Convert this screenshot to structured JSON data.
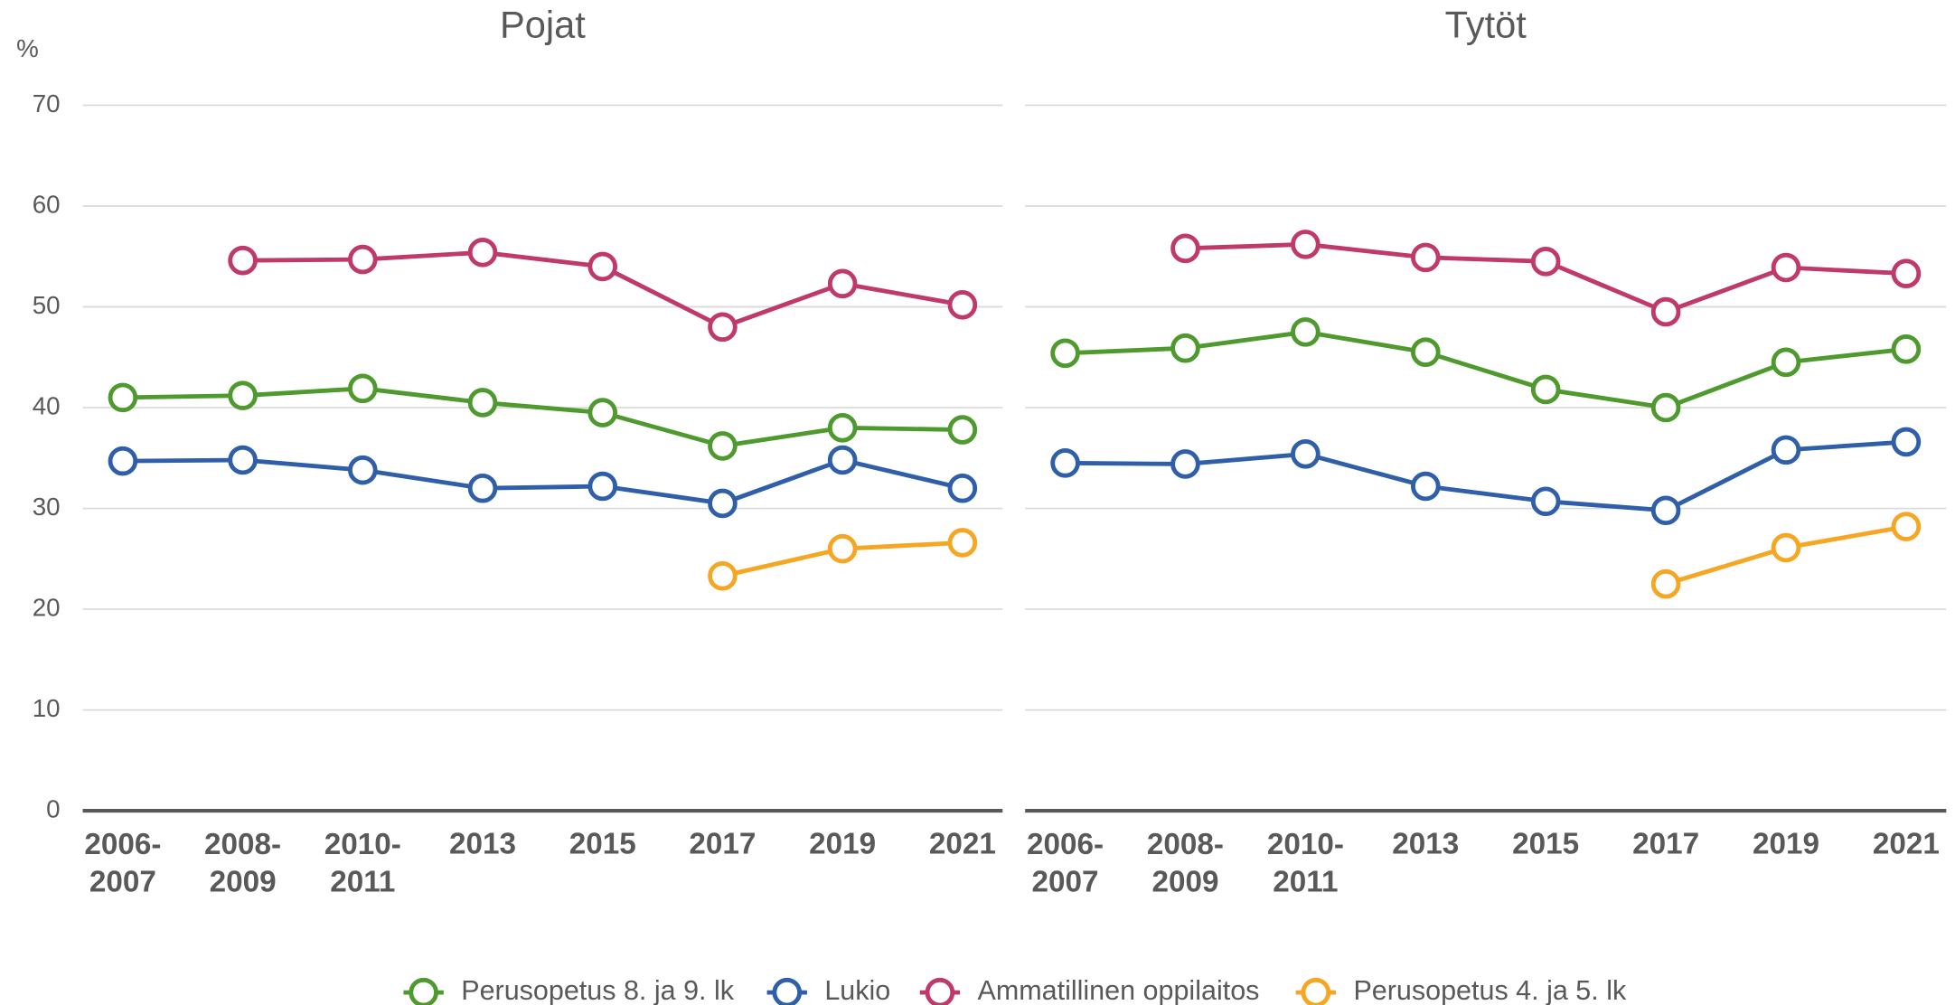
{
  "chart_data": [
    {
      "type": "line",
      "title": "Pojat",
      "y_label": "%",
      "categories": [
        "2006-\n2007",
        "2008-\n2009",
        "2010-\n2011",
        "2013",
        "2015",
        "2017",
        "2019",
        "2021"
      ],
      "ylim": [
        0,
        70
      ],
      "yticks": [
        0,
        10,
        20,
        30,
        40,
        50,
        60,
        70
      ],
      "grid": true,
      "series": [
        {
          "name": "Perusopetus 8. ja 9. lk",
          "color": "#4e9a2e",
          "values": [
            41.0,
            41.2,
            41.9,
            40.5,
            39.5,
            36.2,
            38.0,
            37.8
          ]
        },
        {
          "name": "Lukio",
          "color": "#2f5fa8",
          "values": [
            34.7,
            34.8,
            33.8,
            32.0,
            32.2,
            30.5,
            34.8,
            32.0
          ]
        },
        {
          "name": "Ammatillinen oppilaitos",
          "color": "#c0396b",
          "values": [
            null,
            54.6,
            54.7,
            55.4,
            54.0,
            48.0,
            52.3,
            50.2
          ]
        },
        {
          "name": "Perusopetus 4. ja 5. lk",
          "color": "#f5a623",
          "values": [
            null,
            null,
            null,
            null,
            null,
            23.3,
            26.0,
            26.6
          ]
        }
      ]
    },
    {
      "type": "line",
      "title": "Tytöt",
      "categories": [
        "2006-\n2007",
        "2008-\n2009",
        "2010-\n2011",
        "2013",
        "2015",
        "2017",
        "2019",
        "2021"
      ],
      "ylim": [
        0,
        70
      ],
      "yticks": [
        0,
        10,
        20,
        30,
        40,
        50,
        60,
        70
      ],
      "grid": true,
      "series": [
        {
          "color": "#4e9a2e",
          "values": [
            45.4,
            45.9,
            47.5,
            45.5,
            41.8,
            40.0,
            44.5,
            45.8
          ]
        },
        {
          "color": "#2f5fa8",
          "values": [
            34.5,
            34.4,
            35.4,
            32.2,
            30.7,
            29.8,
            35.8,
            36.6
          ]
        },
        {
          "color": "#c0396b",
          "values": [
            null,
            55.8,
            56.2,
            54.9,
            54.5,
            49.5,
            53.9,
            53.3
          ]
        },
        {
          "color": "#f5a623",
          "values": [
            null,
            null,
            null,
            null,
            null,
            22.5,
            26.1,
            28.2
          ]
        }
      ]
    }
  ]
}
